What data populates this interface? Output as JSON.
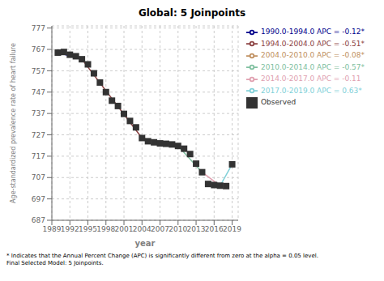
{
  "chart_data": {
    "type": "line",
    "title": "Global: 5 Joinpoints",
    "xlabel": "year",
    "ylabel": "Age-standardized prevalence rate of heart failure",
    "xlim": [
      1989,
      2020
    ],
    "xticks": [
      1989,
      1992,
      1995,
      1998,
      2001,
      2004,
      2007,
      2010,
      2013,
      2016,
      2019
    ],
    "ylim": [
      687,
      778
    ],
    "yticks": [
      687,
      697,
      707,
      717,
      727,
      737,
      747,
      757,
      767,
      777
    ],
    "grid": true,
    "legend": "right",
    "series": [
      {
        "name": "Observed",
        "type": "scatter",
        "marker": "square",
        "color": "#333333",
        "x": [
          1990,
          1991,
          1992,
          1993,
          1994,
          1995,
          1996,
          1997,
          1998,
          1999,
          2000,
          2001,
          2002,
          2003,
          2004,
          2005,
          2006,
          2007,
          2008,
          2009,
          2010,
          2011,
          2012,
          2013,
          2014,
          2015,
          2016,
          2017,
          2018,
          2019
        ],
        "values": [
          765.5,
          765.8,
          764.5,
          763.8,
          762.4,
          760.0,
          755.8,
          751.5,
          747.0,
          743.0,
          740.5,
          736.8,
          733.5,
          730.5,
          725.5,
          724.0,
          723.5,
          723.0,
          722.8,
          722.5,
          721.8,
          720.5,
          718.0,
          713.5,
          709.5,
          704.0,
          703.5,
          703.2,
          703.0,
          713.2
        ]
      },
      {
        "name": "1990.0-1994.0 APC = -0.12*",
        "type": "line",
        "color": "#00008B",
        "x": [
          1990,
          1994
        ],
        "values": [
          765.5,
          762.4
        ]
      },
      {
        "name": "1994.0-2004.0 APC = -0.51*",
        "type": "line",
        "color": "#8B4040",
        "x": [
          1994,
          2004
        ],
        "values": [
          762.4,
          725.5
        ]
      },
      {
        "name": "2004.0-2010.0 APC = -0.08*",
        "type": "line",
        "color": "#C09060",
        "x": [
          2004,
          2010
        ],
        "values": [
          725.5,
          721.8
        ]
      },
      {
        "name": "2010.0-2014.0 APC = -0.57*",
        "type": "line",
        "color": "#80C0A0",
        "x": [
          2010,
          2014
        ],
        "values": [
          721.8,
          709.5
        ]
      },
      {
        "name": "2014.0-2017.0 APC = -0.11",
        "type": "line",
        "color": "#E0A0B0",
        "x": [
          2014,
          2017
        ],
        "values": [
          709.5,
          703.2
        ]
      },
      {
        "name": "2017.0-2019.0 APC = 0.63*",
        "type": "line",
        "color": "#80D0D8",
        "x": [
          2017,
          2019
        ],
        "values": [
          703.2,
          713.2
        ]
      }
    ],
    "annotations": [
      "* Indicates that the Annual Percent Change (APC) is significantly different from zero at the alpha = 0.05 level.",
      "Final Selected Model: 5 Joinpoints."
    ]
  }
}
